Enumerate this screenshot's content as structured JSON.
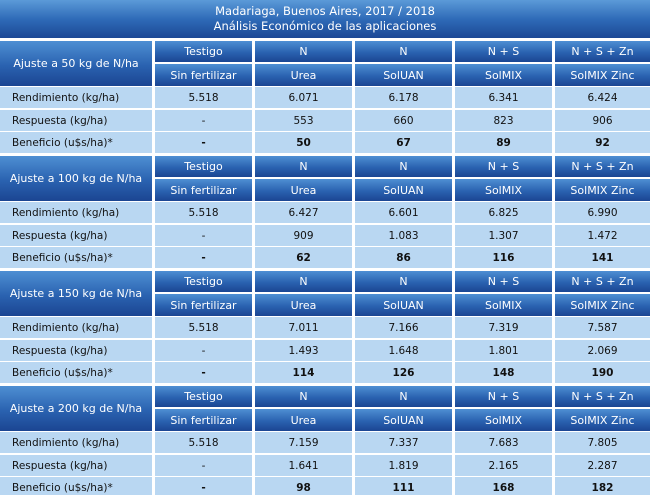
{
  "title": {
    "line1": "Madariaga, Buenos Aires, 2017 / 2018",
    "line2": "Análisis Económico de las aplicaciones"
  },
  "columns": {
    "top": [
      "Testigo",
      "N",
      "N",
      "N + S",
      "N + S + Zn"
    ],
    "bottom": [
      "Sin fertilizar",
      "Urea",
      "SolUAN",
      "SolMIX",
      "SolMIX Zinc"
    ]
  },
  "row_labels": [
    "Rendimiento (kg/ha)",
    "Respuesta (kg/ha)",
    "Beneficio (u$s/ha)*"
  ],
  "blocks": [
    {
      "title": "Ajuste a 50 kg de N/ha",
      "rows": [
        [
          "5.518",
          "6.071",
          "6.178",
          "6.341",
          "6.424"
        ],
        [
          "-",
          "553",
          "660",
          "823",
          "906"
        ],
        [
          "-",
          "50",
          "67",
          "89",
          "92"
        ]
      ]
    },
    {
      "title": "Ajuste a 100 kg de N/ha",
      "rows": [
        [
          "5.518",
          "6.427",
          "6.601",
          "6.825",
          "6.990"
        ],
        [
          "-",
          "909",
          "1.083",
          "1.307",
          "1.472"
        ],
        [
          "-",
          "62",
          "86",
          "116",
          "141"
        ]
      ]
    },
    {
      "title": "Ajuste a 150 kg de N/ha",
      "rows": [
        [
          "5.518",
          "7.011",
          "7.166",
          "7.319",
          "7.587"
        ],
        [
          "-",
          "1.493",
          "1.648",
          "1.801",
          "2.069"
        ],
        [
          "-",
          "114",
          "126",
          "148",
          "190"
        ]
      ]
    },
    {
      "title": "Ajuste a 200 kg de N/ha",
      "rows": [
        [
          "5.518",
          "7.159",
          "7.337",
          "7.683",
          "7.805"
        ],
        [
          "-",
          "1.641",
          "1.819",
          "2.165",
          "2.287"
        ],
        [
          "-",
          "98",
          "111",
          "168",
          "182"
        ]
      ]
    }
  ],
  "colors": {
    "header": "#2a62b0",
    "row": "#b9d7f2"
  }
}
